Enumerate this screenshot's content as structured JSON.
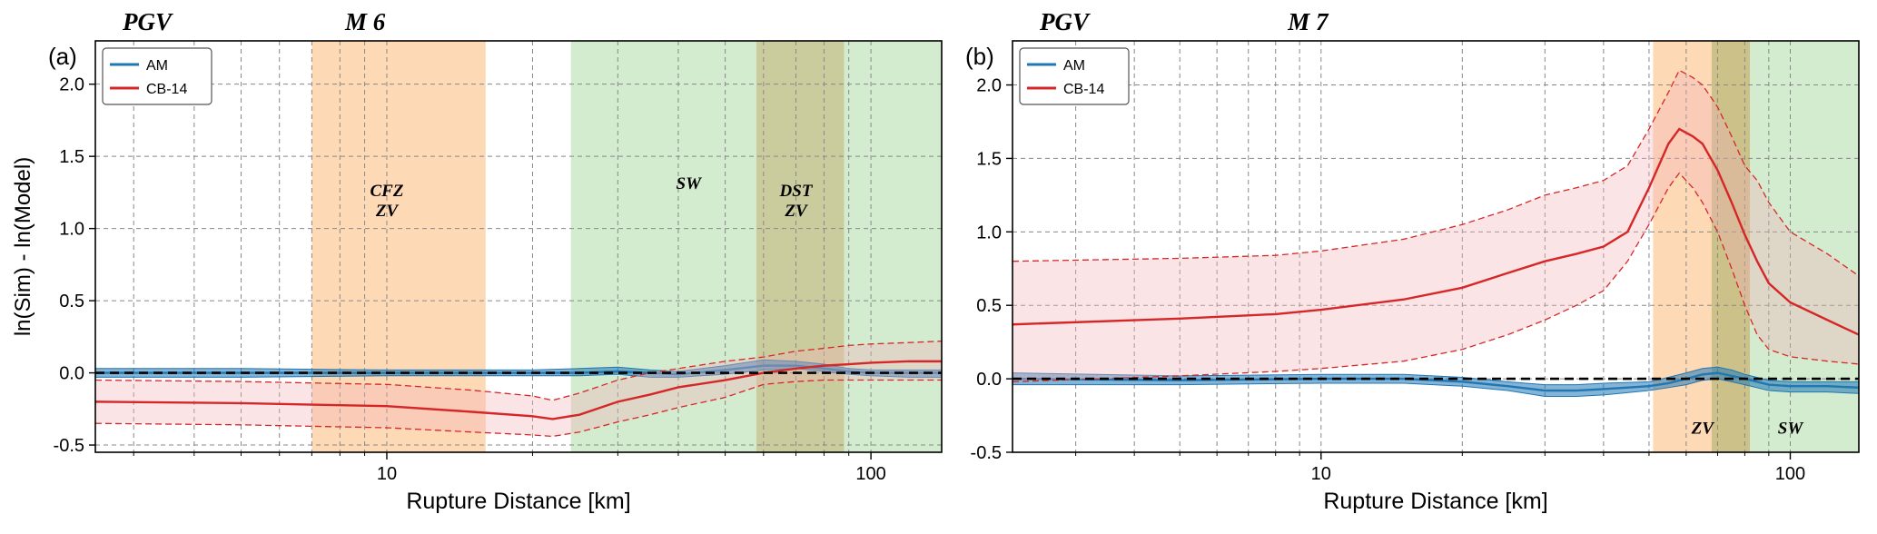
{
  "chart_data": [
    {
      "type": "line",
      "panel_label": "(a)",
      "header_left": "PGV",
      "header_center": "M  6",
      "xlabel": "Rupture Distance [km]",
      "ylabel": "ln(Sim) - ln(Model)",
      "xscale": "log",
      "xlim": [
        2.5,
        140
      ],
      "ylim": [
        -0.55,
        2.3
      ],
      "yticks": [
        -0.5,
        0.0,
        0.5,
        1.0,
        1.5,
        2.0
      ],
      "ytick_labels": [
        "-0.5",
        "0.0",
        "0.5",
        "1.0",
        "1.5",
        "2.0"
      ],
      "xticks": [
        10,
        100
      ],
      "xtick_labels": [
        "10",
        "100"
      ],
      "grid": true,
      "legend": {
        "placement": "top-left",
        "entries": [
          {
            "label": "AM",
            "color": "#1f77b4"
          },
          {
            "label": "CB-14",
            "color": "#d62728"
          }
        ]
      },
      "zones": [
        {
          "name": "CFZ\nZV",
          "x0": 7,
          "x1": 16,
          "color": "#fdbf84",
          "opacity": 0.6,
          "label_x": 10,
          "label_y": 1.2
        },
        {
          "name": "SW",
          "x0": 24,
          "x1": 140,
          "color": "#a8d8a0",
          "opacity": 0.5,
          "label_x": 42,
          "label_y": 1.32
        },
        {
          "name": "DST\nZV",
          "x0": 58,
          "x1": 88,
          "color": "#c2a662",
          "opacity": 0.45,
          "label_x": 70,
          "label_y": 1.2
        }
      ],
      "series": [
        {
          "name": "AM",
          "color": "#1f77b4",
          "x": [
            2.5,
            5,
            10,
            15,
            20,
            25,
            30,
            35,
            40,
            50,
            60,
            70,
            80,
            90,
            100,
            120,
            140
          ],
          "mean": [
            0.0,
            0.0,
            0.0,
            0.0,
            0.0,
            0.0,
            0.01,
            0.0,
            -0.01,
            0.02,
            0.05,
            0.05,
            0.03,
            0.01,
            0.0,
            0.0,
            0.0
          ],
          "lower": [
            -0.03,
            -0.03,
            -0.02,
            -0.02,
            -0.02,
            -0.02,
            -0.01,
            -0.03,
            -0.03,
            -0.01,
            0.02,
            0.03,
            0.01,
            -0.01,
            -0.02,
            -0.03,
            -0.03
          ],
          "upper": [
            0.03,
            0.03,
            0.02,
            0.02,
            0.02,
            0.03,
            0.04,
            0.02,
            0.01,
            0.05,
            0.09,
            0.08,
            0.06,
            0.03,
            0.02,
            0.02,
            0.02
          ]
        },
        {
          "name": "CB-14",
          "color": "#d62728",
          "x": [
            2.5,
            5,
            7,
            10,
            15,
            20,
            22,
            25,
            30,
            35,
            40,
            50,
            60,
            70,
            80,
            90,
            100,
            120,
            140
          ],
          "mean": [
            -0.2,
            -0.21,
            -0.22,
            -0.23,
            -0.27,
            -0.3,
            -0.32,
            -0.29,
            -0.2,
            -0.15,
            -0.1,
            -0.05,
            0.0,
            0.03,
            0.05,
            0.06,
            0.07,
            0.08,
            0.08
          ],
          "lower": [
            -0.35,
            -0.36,
            -0.37,
            -0.38,
            -0.41,
            -0.43,
            -0.44,
            -0.41,
            -0.34,
            -0.29,
            -0.24,
            -0.17,
            -0.08,
            -0.06,
            -0.05,
            -0.05,
            -0.05,
            -0.05,
            -0.05
          ],
          "upper": [
            -0.05,
            -0.06,
            -0.07,
            -0.08,
            -0.12,
            -0.16,
            -0.19,
            -0.14,
            -0.05,
            0.0,
            0.03,
            0.08,
            0.11,
            0.15,
            0.17,
            0.19,
            0.2,
            0.21,
            0.22
          ]
        }
      ]
    },
    {
      "type": "line",
      "panel_label": "(b)",
      "header_left": "PGV",
      "header_center": "M  7",
      "xlabel": "Rupture Distance [km]",
      "ylabel": "",
      "xscale": "log",
      "xlim": [
        2.2,
        140
      ],
      "ylim": [
        -0.5,
        2.3
      ],
      "yticks": [
        -0.5,
        0.0,
        0.5,
        1.0,
        1.5,
        2.0
      ],
      "ytick_labels": [
        "-0.5",
        "0.0",
        "0.5",
        "1.0",
        "1.5",
        "2.0"
      ],
      "xticks": [
        10,
        100
      ],
      "xtick_labels": [
        "10",
        "100"
      ],
      "grid": true,
      "legend": {
        "placement": "top-left",
        "entries": [
          {
            "label": "AM",
            "color": "#1f77b4"
          },
          {
            "label": "CB-14",
            "color": "#d62728"
          }
        ]
      },
      "zones": [
        {
          "name": "ZV",
          "x0": 51,
          "x1": 82,
          "color": "#fdbf84",
          "opacity": 0.6,
          "label_x": 65,
          "label_y": -0.33
        },
        {
          "name": "SW",
          "x0": 68,
          "x1": 140,
          "color": "#a8d8a0",
          "opacity": 0.5,
          "label_x": 100,
          "label_y": -0.33
        },
        {
          "name": "",
          "x0": 68,
          "x1": 82,
          "color": "#c2a662",
          "opacity": 0.45,
          "label_x": 0,
          "label_y": 0
        }
      ],
      "series": [
        {
          "name": "AM",
          "color": "#1f77b4",
          "x": [
            2.2,
            5,
            10,
            15,
            20,
            25,
            30,
            35,
            40,
            50,
            55,
            60,
            65,
            70,
            75,
            80,
            90,
            100,
            120,
            140
          ],
          "mean": [
            0.0,
            -0.01,
            0.0,
            0.0,
            -0.02,
            -0.05,
            -0.08,
            -0.08,
            -0.07,
            -0.05,
            -0.03,
            0.0,
            0.03,
            0.04,
            0.02,
            0.0,
            -0.04,
            -0.05,
            -0.05,
            -0.06
          ],
          "lower": [
            -0.04,
            -0.04,
            -0.03,
            -0.03,
            -0.05,
            -0.08,
            -0.12,
            -0.12,
            -0.11,
            -0.08,
            -0.06,
            -0.04,
            -0.01,
            0.0,
            -0.02,
            -0.04,
            -0.08,
            -0.09,
            -0.09,
            -0.1
          ],
          "upper": [
            0.04,
            0.02,
            0.03,
            0.03,
            0.01,
            -0.02,
            -0.04,
            -0.04,
            -0.03,
            -0.02,
            0.01,
            0.04,
            0.07,
            0.08,
            0.06,
            0.03,
            -0.01,
            -0.02,
            -0.02,
            -0.02
          ]
        },
        {
          "name": "CB-14",
          "color": "#d62728",
          "x": [
            2.2,
            5,
            8,
            10,
            15,
            20,
            25,
            30,
            35,
            40,
            45,
            50,
            55,
            58,
            62,
            65,
            70,
            75,
            80,
            85,
            90,
            100,
            120,
            140
          ],
          "mean": [
            0.37,
            0.41,
            0.44,
            0.47,
            0.54,
            0.62,
            0.72,
            0.8,
            0.85,
            0.9,
            1.0,
            1.3,
            1.6,
            1.7,
            1.65,
            1.6,
            1.42,
            1.2,
            0.98,
            0.8,
            0.65,
            0.52,
            0.4,
            0.3
          ],
          "lower": [
            -0.02,
            0.02,
            0.05,
            0.07,
            0.12,
            0.2,
            0.3,
            0.4,
            0.5,
            0.6,
            0.8,
            1.05,
            1.3,
            1.4,
            1.3,
            1.2,
            1.0,
            0.75,
            0.5,
            0.3,
            0.2,
            0.15,
            0.12,
            0.1
          ],
          "upper": [
            0.8,
            0.82,
            0.84,
            0.87,
            0.95,
            1.05,
            1.15,
            1.25,
            1.3,
            1.35,
            1.45,
            1.7,
            1.95,
            2.1,
            2.05,
            2.0,
            1.85,
            1.65,
            1.45,
            1.35,
            1.2,
            1.0,
            0.85,
            0.7
          ]
        }
      ]
    }
  ]
}
